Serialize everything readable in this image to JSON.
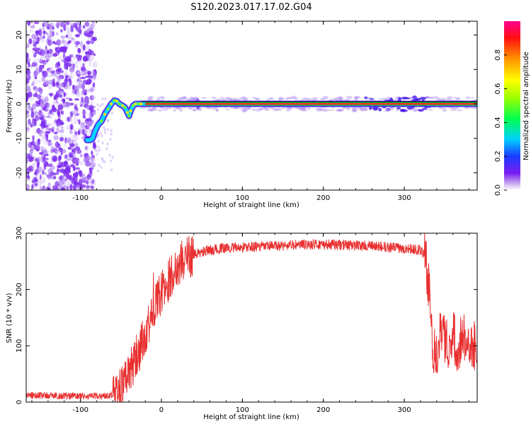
{
  "title": "S120.2023.017.17.02.G04",
  "colors": {
    "snr_line": "#e83030",
    "track_line": "#000000",
    "noise": "#7d2cf0",
    "axis": "#000000"
  },
  "chart_data": [
    {
      "type": "heatmap",
      "title": "S120.2023.017.17.02.G04",
      "xlabel": "Height of straight line (km)",
      "ylabel": "Frequency (Hz)",
      "xlim": [
        -167,
        390
      ],
      "ylim": [
        -25,
        24
      ],
      "xticks": [
        -100,
        0,
        100,
        200,
        300
      ],
      "yticks": [
        -20,
        -10,
        0,
        10,
        20
      ],
      "colorbar": {
        "label": "Normalized spectral amplitude",
        "range": [
          0,
          1
        ],
        "ticks": [
          0.0,
          0.2,
          0.4,
          0.6,
          0.8
        ],
        "tick_labels": [
          "0.0",
          "0.2",
          "0.4",
          "0.6",
          "0.8"
        ],
        "colormap": "rainbow"
      },
      "track": {
        "x": [
          -92,
          -88,
          -85,
          -82,
          -78,
          -74,
          -70,
          -66,
          -62,
          -58,
          -55,
          -52,
          -48,
          -45,
          -42,
          -40,
          -38,
          -35,
          -32,
          -28,
          -25,
          -20,
          0,
          50,
          100,
          150,
          200,
          250,
          300,
          350,
          390
        ],
        "y": [
          -10.5,
          -10.5,
          -10,
          -8,
          -6,
          -5,
          -3,
          -1.5,
          0,
          1,
          0.8,
          0,
          -0.5,
          -1,
          -2.5,
          -3.5,
          -2,
          -0.5,
          0,
          0,
          0,
          0,
          0,
          0,
          0,
          0,
          0,
          0,
          0,
          0,
          0
        ]
      }
    },
    {
      "type": "line",
      "xlabel": "Height of straight line (km)",
      "ylabel": "SNR (10 * v/v)",
      "xlim": [
        -167,
        390
      ],
      "ylim": [
        0,
        300
      ],
      "xticks": [
        -100,
        0,
        100,
        200,
        300
      ],
      "yticks": [
        0,
        100,
        200,
        300
      ],
      "series": [
        {
          "x": [
            -167,
            -150,
            -130,
            -110,
            -90,
            -70,
            -60,
            -50,
            -45,
            -40,
            -35,
            -30,
            -25,
            -20,
            -15,
            -10,
            -5,
            0,
            5,
            10,
            15,
            20,
            25,
            30,
            40,
            50,
            60,
            80,
            100,
            120,
            150,
            180,
            200,
            230,
            260,
            290,
            310,
            320,
            325,
            330,
            335,
            340,
            345,
            350,
            355,
            360,
            365,
            370,
            375,
            380,
            385,
            390
          ],
          "values": [
            12,
            12,
            11,
            11,
            10,
            11,
            14,
            25,
            35,
            55,
            65,
            85,
            100,
            120,
            145,
            160,
            180,
            195,
            205,
            220,
            232,
            242,
            250,
            256,
            262,
            266,
            270,
            274,
            275,
            276,
            278,
            280,
            280,
            279,
            277,
            274,
            272,
            270,
            262,
            210,
            100,
            85,
            140,
            115,
            100,
            125,
            95,
            110,
            120,
            90,
            100,
            95
          ]
        }
      ]
    }
  ]
}
